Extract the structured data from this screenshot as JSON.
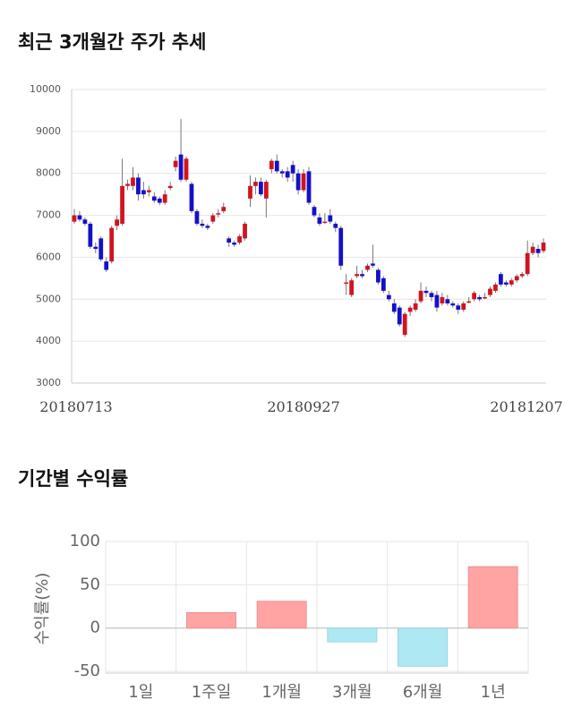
{
  "chart_data": [
    {
      "type": "candlestick",
      "title": "최근 3개월간 주가 추세",
      "x": [
        "20180713",
        null,
        null,
        null,
        null,
        null,
        null,
        null,
        null,
        null,
        null,
        null,
        null,
        null,
        null,
        null,
        null,
        null,
        null,
        null,
        null,
        null,
        null,
        null,
        null,
        null,
        null,
        null,
        null,
        null,
        null,
        null,
        null,
        null,
        null,
        null,
        null,
        null,
        null,
        null,
        null,
        null,
        null,
        "20180927",
        null,
        null,
        null,
        null,
        null,
        null,
        null,
        null,
        null,
        null,
        null,
        null,
        null,
        null,
        null,
        null,
        null,
        null,
        null,
        null,
        null,
        null,
        null,
        null,
        null,
        null,
        null,
        null,
        null,
        null,
        null,
        null,
        null,
        null,
        null,
        null,
        null,
        null,
        null,
        null,
        null,
        null,
        null,
        null,
        "20181207"
      ],
      "open": [
        6850,
        7000,
        6900,
        6800,
        6250,
        6450,
        5900,
        5900,
        6750,
        6800,
        7700,
        7700,
        7900,
        7600,
        7550,
        7450,
        7400,
        7300,
        7650,
        8150,
        8450,
        7850,
        7750,
        7100,
        6800,
        6750,
        6850,
        7050,
        7100,
        6450,
        6350,
        6350,
        6450,
        7400,
        7700,
        7800,
        7400,
        8100,
        8300,
        8050,
        8050,
        8200,
        8000,
        7600,
        8050,
        7200,
        6950,
        6850,
        7000,
        6800,
        6700,
        5400,
        5100,
        5550,
        5600,
        5700,
        5850,
        5700,
        5500,
        5100,
        4900,
        4800,
        4150,
        4700,
        4750,
        4950,
        5200,
        5150,
        5100,
        4900,
        5000,
        4900,
        4850,
        4750,
        4950,
        5000,
        5050,
        5050,
        5100,
        5200,
        5600,
        5400,
        5350,
        5450,
        5550,
        5600,
        6100,
        6200,
        6150
      ],
      "high": [
        7150,
        7100,
        6950,
        6850,
        6350,
        6500,
        6000,
        6750,
        7000,
        8350,
        7850,
        8150,
        8000,
        7800,
        7700,
        7550,
        7450,
        7600,
        7800,
        8400,
        9300,
        8400,
        7800,
        7150,
        6900,
        6800,
        7050,
        7150,
        7300,
        6500,
        6400,
        6550,
        6850,
        7950,
        7900,
        7900,
        7850,
        8350,
        8450,
        8100,
        8150,
        8300,
        8100,
        8100,
        8150,
        7250,
        7050,
        7050,
        7150,
        6850,
        6750,
        5600,
        5500,
        5800,
        5700,
        5850,
        6300,
        5750,
        5550,
        5200,
        5000,
        4850,
        4700,
        4850,
        5000,
        5400,
        5300,
        5200,
        5200,
        5150,
        5100,
        4950,
        4900,
        4950,
        5050,
        5200,
        5100,
        5150,
        5300,
        5400,
        5650,
        5450,
        5500,
        5600,
        5650,
        6400,
        6350,
        6300,
        6450
      ],
      "low": [
        6800,
        6850,
        6750,
        6200,
        6100,
        5900,
        5650,
        5850,
        6650,
        6750,
        7600,
        7600,
        7350,
        7400,
        7450,
        7300,
        7250,
        7250,
        7600,
        8050,
        7800,
        7800,
        7050,
        6750,
        6700,
        6650,
        6800,
        6950,
        7050,
        6250,
        6250,
        6300,
        6400,
        7200,
        7500,
        7450,
        6950,
        8000,
        8000,
        7900,
        7800,
        7800,
        7500,
        7550,
        7250,
        6950,
        6750,
        6800,
        6800,
        6600,
        5700,
        5100,
        5050,
        5500,
        5500,
        5650,
        5750,
        5350,
        5150,
        4950,
        4650,
        4350,
        4100,
        4600,
        4700,
        4900,
        5050,
        4950,
        4700,
        4850,
        4850,
        4800,
        4650,
        4700,
        4900,
        4950,
        4950,
        5000,
        5050,
        5150,
        5300,
        5300,
        5300,
        5400,
        5500,
        5550,
        6050,
        6000,
        6100
      ],
      "close": [
        7000,
        6900,
        6800,
        6250,
        6200,
        5950,
        5700,
        6700,
        6900,
        7700,
        7750,
        7900,
        7500,
        7500,
        7600,
        7350,
        7300,
        7500,
        7700,
        8300,
        7850,
        8350,
        7100,
        6800,
        6750,
        6700,
        7000,
        7050,
        7200,
        6350,
        6300,
        6500,
        6800,
        7700,
        7800,
        7500,
        7800,
        8300,
        8050,
        8000,
        7900,
        8000,
        7600,
        8000,
        7300,
        7000,
        6800,
        6850,
        6850,
        6700,
        5800,
        5400,
        5450,
        5600,
        5550,
        5800,
        5800,
        5400,
        5200,
        5000,
        4700,
        4400,
        4650,
        4800,
        4900,
        5200,
        5150,
        5050,
        4800,
        5050,
        4900,
        4850,
        4750,
        4900,
        4950,
        5150,
        5000,
        5050,
        5250,
        5350,
        5350,
        5350,
        5450,
        5550,
        5600,
        6100,
        6250,
        6100,
        6350
      ],
      "up_color": "#d0141e",
      "down_color": "#1410c8",
      "ylim": [
        3000,
        10000
      ],
      "yticks": [
        3000,
        4000,
        5000,
        6000,
        7000,
        8000,
        9000,
        10000
      ],
      "grid": true
    },
    {
      "type": "bar",
      "title": "기간별 수익률",
      "y_label": "수익률(%)",
      "categories": [
        "1일",
        "1주일",
        "1개월",
        "3개월",
        "6개월",
        "1년"
      ],
      "values": [
        0,
        18,
        31,
        -16,
        -44,
        71
      ],
      "positive_color": "#ffa3a3",
      "negative_color": "#aee8f2",
      "ylim": [
        -52,
        100
      ],
      "yticks": [
        -50,
        0,
        50,
        100
      ],
      "grid": true
    }
  ]
}
